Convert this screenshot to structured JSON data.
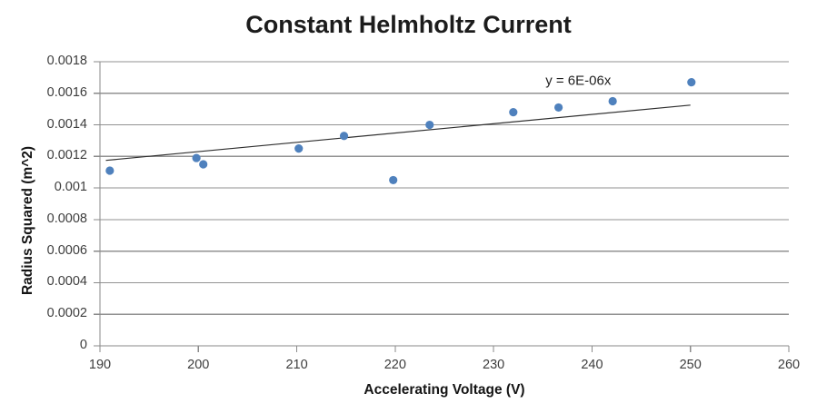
{
  "chart_data": {
    "type": "scatter",
    "title": "Constant Helmholtz Current",
    "xlabel": "Accelerating Voltage (V)",
    "ylabel": "Radius Squared (m^2)",
    "xlim": [
      190,
      260
    ],
    "ylim": [
      0,
      0.0018
    ],
    "xticks": [
      190,
      200,
      210,
      220,
      230,
      240,
      250,
      260
    ],
    "yticks": [
      0,
      0.0002,
      0.0004,
      0.0006,
      0.0008,
      0.001,
      0.0012,
      0.0014,
      0.0016,
      0.0018
    ],
    "ytick_labels": [
      "0",
      "0.0002",
      "0.0004",
      "0.0006",
      "0.0008",
      "0.001",
      "0.0012",
      "0.0014",
      "0.0016",
      "0.0018"
    ],
    "grid": "horizontal-major",
    "legend": "none",
    "points": [
      {
        "x": 191.0,
        "y": 0.00111
      },
      {
        "x": 199.8,
        "y": 0.00119
      },
      {
        "x": 200.5,
        "y": 0.00115
      },
      {
        "x": 210.2,
        "y": 0.00125
      },
      {
        "x": 214.8,
        "y": 0.00133
      },
      {
        "x": 219.8,
        "y": 0.00105
      },
      {
        "x": 223.5,
        "y": 0.0014
      },
      {
        "x": 232.0,
        "y": 0.00148
      },
      {
        "x": 236.6,
        "y": 0.00151
      },
      {
        "x": 242.1,
        "y": 0.00155
      },
      {
        "x": 250.1,
        "y": 0.00167
      }
    ],
    "trendline": {
      "equation": "y = 6E-06x",
      "x1": 190.6,
      "y1": 0.001175,
      "x2": 250.0,
      "y2": 0.001525,
      "eq_x": 238.6,
      "eq_y": 0.00168
    },
    "colors": {
      "point": "#4f81bd",
      "trendline": "#2e2e2e",
      "gridline": "#929292",
      "axis": "#8a8a8a",
      "tick_label": "#3d3d3d",
      "title": "#1c1c1c",
      "background": "#ffffff"
    }
  }
}
